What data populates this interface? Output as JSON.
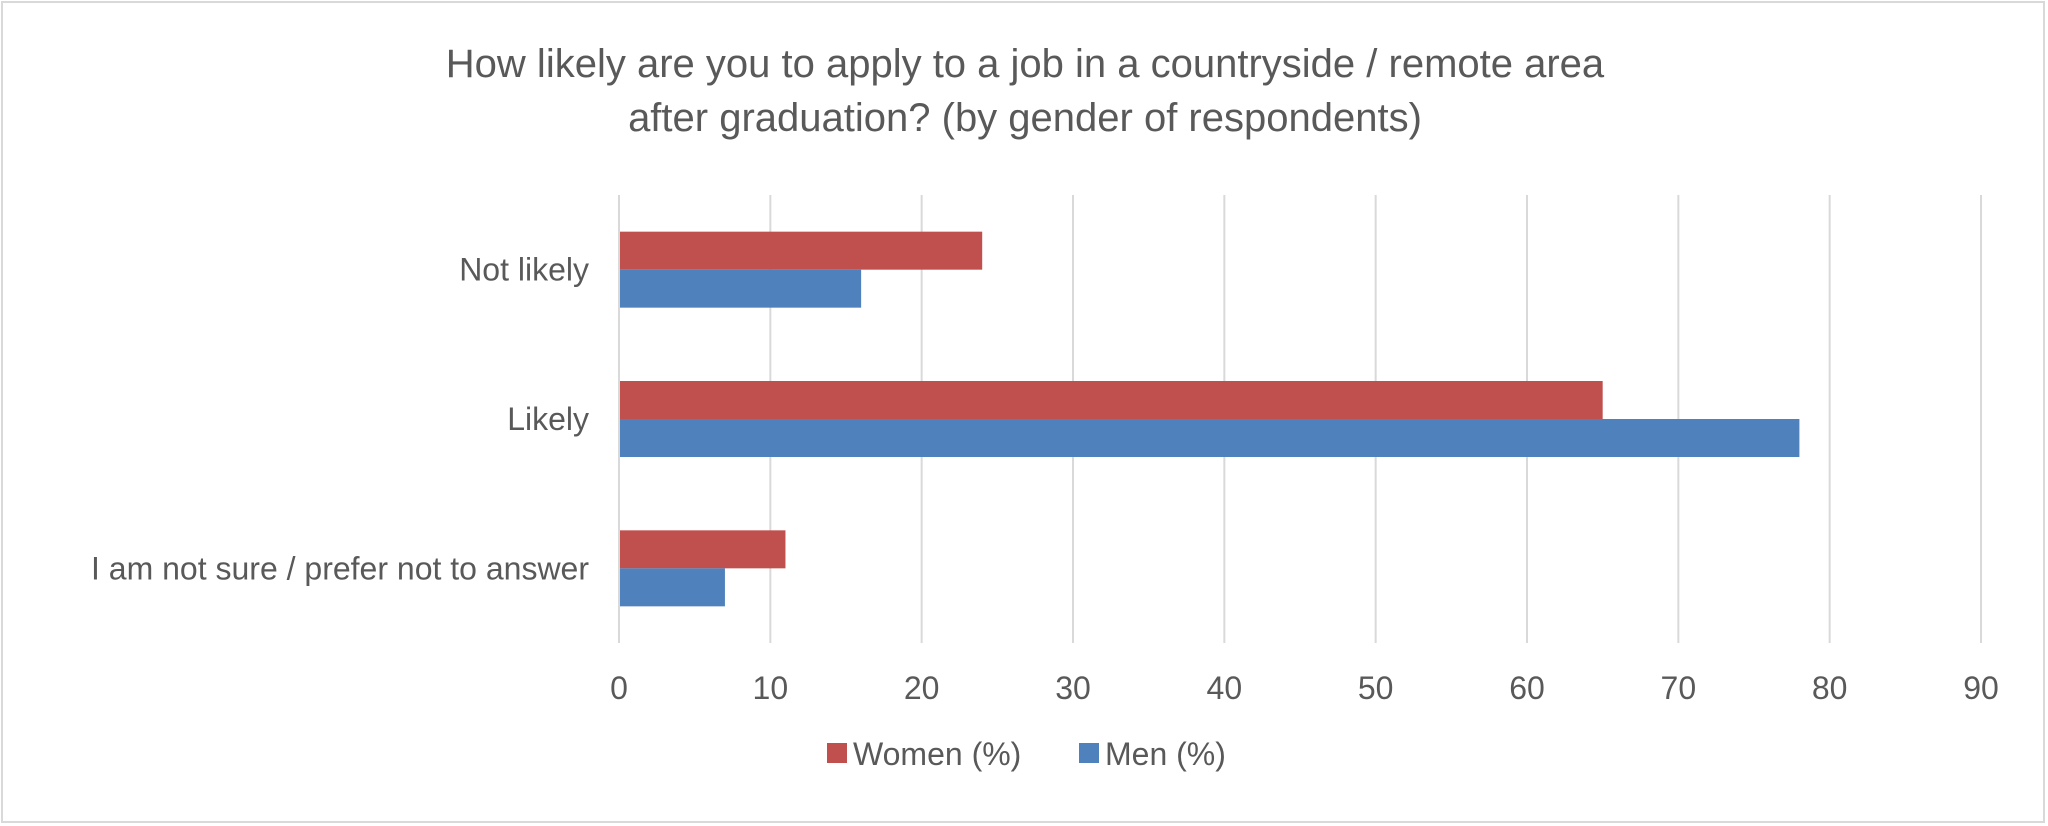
{
  "chart_data": {
    "type": "bar",
    "orientation": "horizontal",
    "title": "How likely are you to apply to a job in a countryside / remote area after graduation? (by gender of respondents)",
    "title_lines": [
      "How likely are you to apply to a job in a countryside / remote area",
      "after graduation? (by gender of respondents)"
    ],
    "categories": [
      "Not likely",
      "Likely",
      "I am not sure / prefer not to answer"
    ],
    "series": [
      {
        "name": "Women (%)",
        "values": [
          24,
          65,
          11
        ],
        "color": "#c0504d"
      },
      {
        "name": "Men (%)",
        "values": [
          16,
          78,
          7
        ],
        "color": "#4f81bd"
      }
    ],
    "xlim": [
      0,
      90
    ],
    "x_ticks": [
      0,
      10,
      20,
      30,
      40,
      50,
      60,
      70,
      80,
      90
    ],
    "grid": true,
    "legend_position": "bottom",
    "gridline_color": "#d9d9d9",
    "text_color": "#595959"
  }
}
